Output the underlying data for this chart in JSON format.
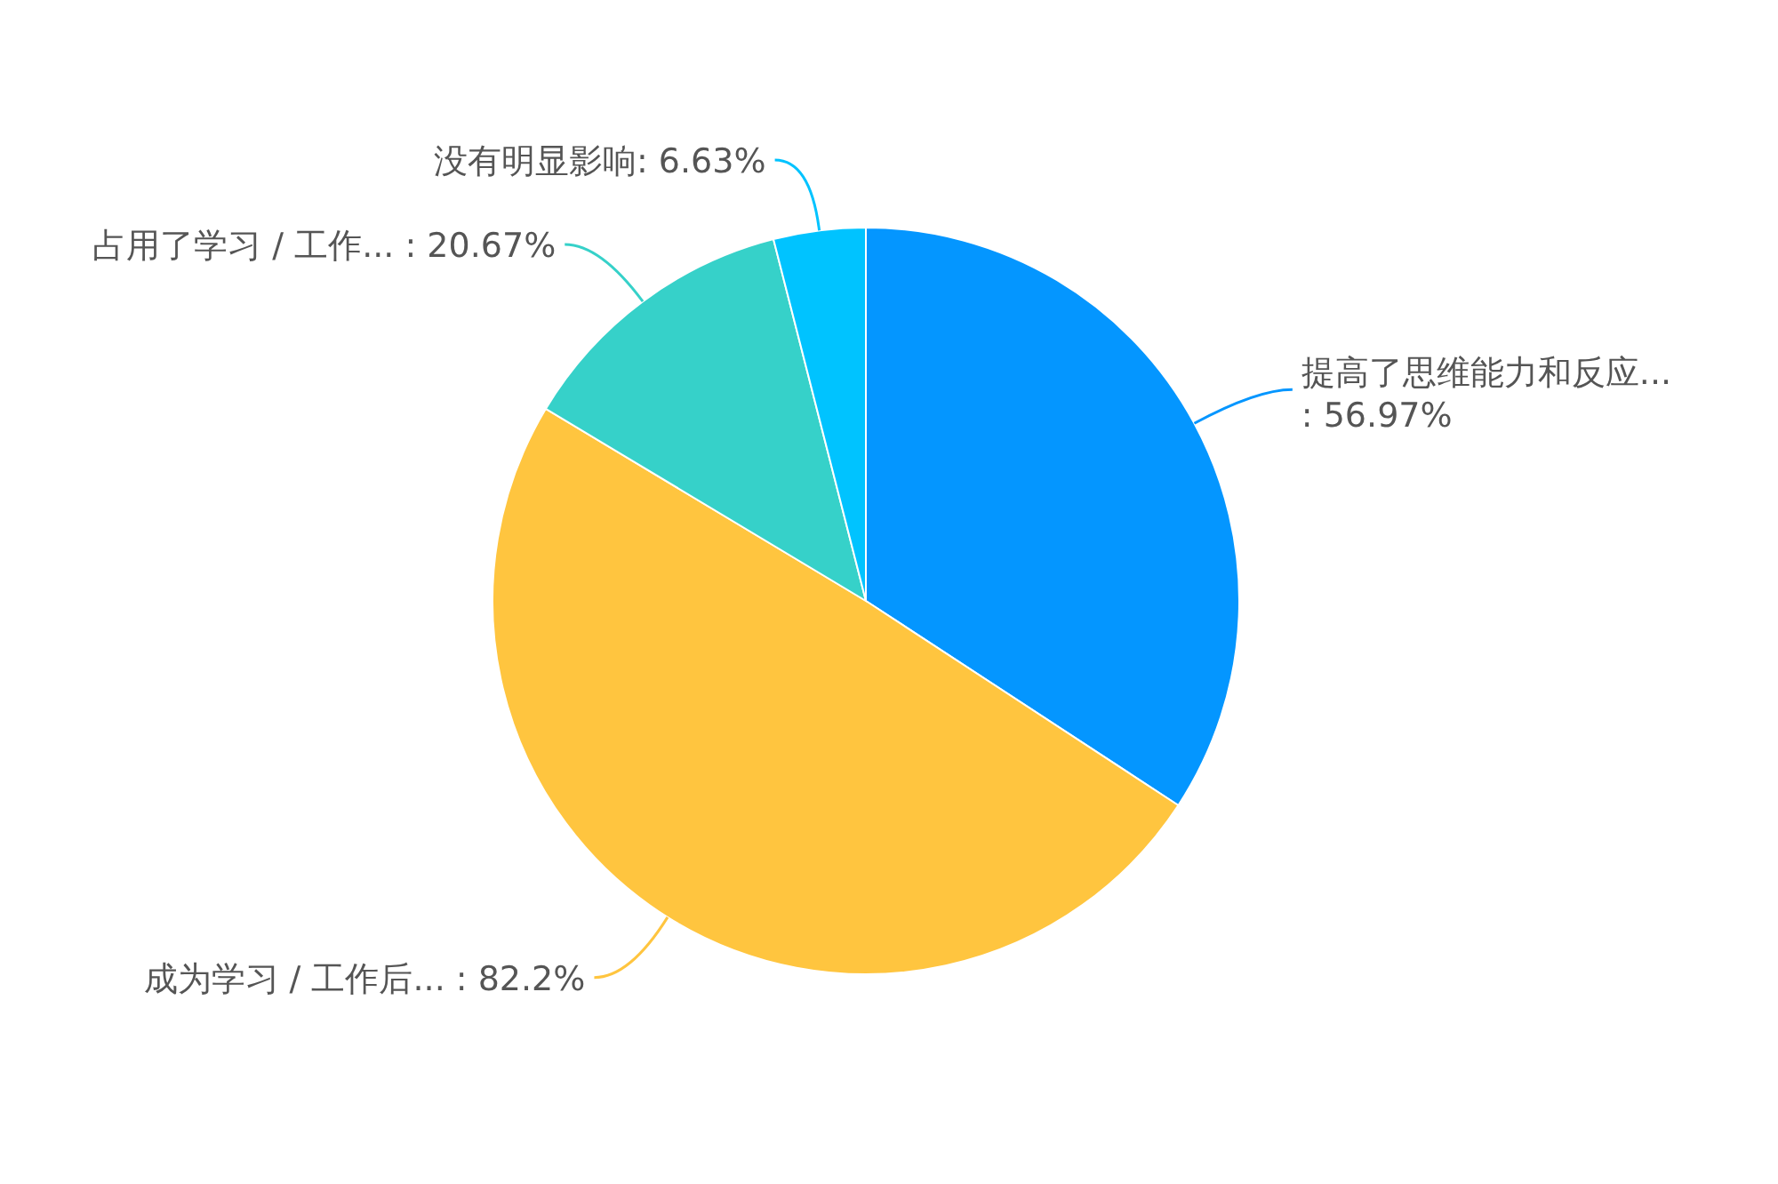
{
  "chart_data": {
    "type": "pie",
    "categories": [
      "提高了思维能力和反应...",
      "成为学习 / 工作后...",
      "占用了学习 / 工作...",
      "没有明显影响"
    ],
    "values": [
      56.97,
      82.2,
      20.67,
      6.63
    ],
    "value_labels": [
      ": 56.97%",
      " : 82.2%",
      " : 20.67%",
      ": 6.63%"
    ],
    "colors": [
      "#0496ff",
      "#ffc53f",
      "#36d1c9",
      "#00c3ff"
    ]
  }
}
